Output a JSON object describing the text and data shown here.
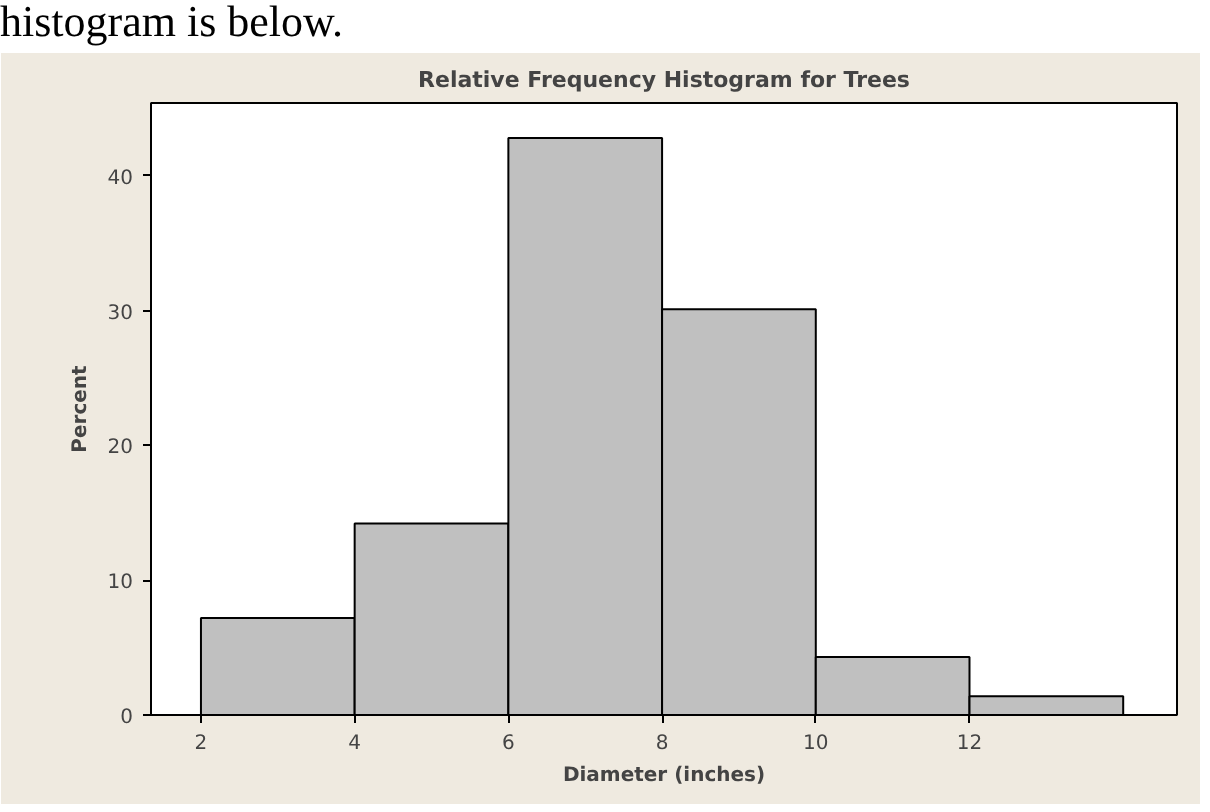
{
  "chart_data": {
    "type": "histogram",
    "title": "Relative Frequency Histogram for Trees",
    "xlabel": "Diameter (inches)",
    "ylabel": "Percent",
    "annotations": [
      "histogram is below."
    ],
    "bins": [
      2,
      4,
      6,
      8,
      10,
      12,
      14
    ],
    "values": [
      7.2,
      14.2,
      42.8,
      30.1,
      4.3,
      1.4
    ],
    "color": "#c0c0c0",
    "xlim": [
      1.35,
      14.7
    ],
    "ylim": [
      0,
      45.4
    ],
    "xticks": [
      2,
      4,
      6,
      8,
      10,
      12
    ],
    "yticks": [
      0,
      10,
      20,
      30,
      40
    ],
    "grid": false
  }
}
